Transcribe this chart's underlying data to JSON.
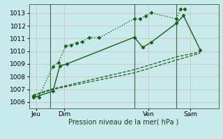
{
  "xlabel": "Pression niveau de la mer( hPa )",
  "ylim": [
    1005.5,
    1013.7
  ],
  "yticks": [
    1006,
    1007,
    1008,
    1009,
    1010,
    1011,
    1012,
    1013
  ],
  "bg_color": "#c8eaea",
  "grid_color": "#d4b8b8",
  "line_color": "#1a5c1a",
  "xtick_labels": [
    "Jeu",
    "Dim",
    "Ven",
    "Sam"
  ],
  "xtick_positions": [
    0.5,
    2.5,
    8.5,
    11.5
  ],
  "xlim": [
    0,
    13.5
  ],
  "vlines_x": [
    1.5,
    7.5,
    10.5
  ],
  "series": [
    {
      "x": [
        0.3,
        0.7,
        1.7,
        2.1,
        2.6,
        3.0,
        3.4,
        3.8,
        4.3,
        5.0,
        7.5,
        7.9,
        8.3,
        8.7,
        10.5,
        10.8,
        11.1
      ],
      "y": [
        1006.5,
        1006.4,
        1008.8,
        1009.1,
        1010.4,
        1010.5,
        1010.65,
        1010.75,
        1011.1,
        1011.05,
        1012.55,
        1012.55,
        1012.78,
        1013.02,
        1012.55,
        1013.3,
        1013.33
      ],
      "linestyle": ":",
      "marker": "D",
      "ms": 2.5,
      "lw": 1.0
    },
    {
      "x": [
        0.3,
        1.7,
        2.2,
        2.7,
        7.5,
        8.1,
        8.7,
        10.5,
        11.0,
        12.2
      ],
      "y": [
        1006.35,
        1006.85,
        1008.85,
        1009.0,
        1011.1,
        1010.3,
        1010.7,
        1012.2,
        1012.8,
        1010.1
      ],
      "linestyle": "-",
      "marker": "D",
      "ms": 2.5,
      "lw": 1.0
    },
    {
      "x": [
        0.3,
        1.7,
        7.5,
        10.5,
        12.2
      ],
      "y": [
        1006.5,
        1007.0,
        1008.3,
        1009.3,
        1009.85
      ],
      "linestyle": "--",
      "marker": null,
      "ms": 0,
      "lw": 0.9
    },
    {
      "x": [
        0.3,
        1.7,
        7.5,
        10.5,
        12.2
      ],
      "y": [
        1006.55,
        1007.05,
        1008.55,
        1009.55,
        1009.95
      ],
      "linestyle": "--",
      "marker": null,
      "ms": 0,
      "lw": 0.9
    }
  ],
  "vlines": [
    1.5,
    7.5,
    10.5
  ]
}
